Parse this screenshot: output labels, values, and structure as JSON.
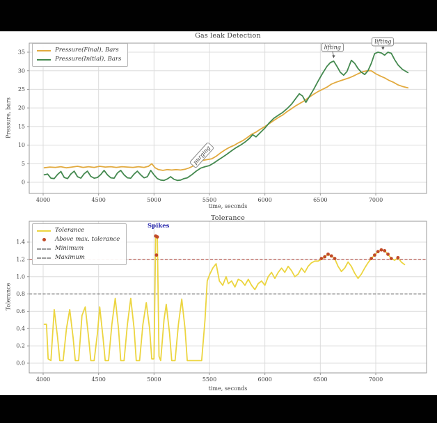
{
  "page": {
    "letterbox_color": "#010101",
    "canvas_color": "#ffffff",
    "grid_color": "#dcdcdc",
    "axis_color": "#999999",
    "tick_text_color": "#444444"
  },
  "chart_data": [
    {
      "type": "line",
      "title": "Gas leak Detection",
      "xlabel": "time, seconds",
      "ylabel": "Pressure, bars",
      "x_ticks": [
        4000,
        4500,
        5000,
        5500,
        6000,
        6500,
        7000
      ],
      "y_ticks": [
        0,
        5,
        10,
        15,
        20,
        25,
        30,
        35
      ],
      "xlim": [
        3875,
        7440
      ],
      "ylim": [
        -3,
        37.4
      ],
      "grid": true,
      "legend_position": "upper-left",
      "series": [
        {
          "name": "Pressure(Final), Bars",
          "color": "#e2aa3f",
          "x": [
            4010,
            4060,
            4110,
            4160,
            4210,
            4260,
            4310,
            4360,
            4410,
            4460,
            4510,
            4560,
            4610,
            4660,
            4710,
            4760,
            4810,
            4860,
            4910,
            4950,
            4980,
            5010,
            5040,
            5080,
            5120,
            5160,
            5200,
            5240,
            5280,
            5320,
            5360,
            5400,
            5440,
            5480,
            5520,
            5560,
            5600,
            5640,
            5680,
            5720,
            5760,
            5800,
            5840,
            5880,
            5920,
            5960,
            6000,
            6040,
            6080,
            6120,
            6160,
            6200,
            6240,
            6280,
            6320,
            6360,
            6400,
            6440,
            6480,
            6520,
            6560,
            6600,
            6640,
            6680,
            6720,
            6760,
            6800,
            6840,
            6880,
            6920,
            6960,
            7000,
            7040,
            7080,
            7120,
            7160,
            7200,
            7240,
            7290
          ],
          "y": [
            3.9,
            4.1,
            4.0,
            4.2,
            3.9,
            4.1,
            4.3,
            4.0,
            4.2,
            4.0,
            4.3,
            4.1,
            4.2,
            4.0,
            4.2,
            4.1,
            4.0,
            4.2,
            4.0,
            4.3,
            5.0,
            3.9,
            3.4,
            3.2,
            3.4,
            3.3,
            3.4,
            3.3,
            3.5,
            3.9,
            4.5,
            5.3,
            5.9,
            6.1,
            6.3,
            7.0,
            7.9,
            8.7,
            9.4,
            9.9,
            10.6,
            11.2,
            12.0,
            12.9,
            13.5,
            14.3,
            15.0,
            15.8,
            16.6,
            17.4,
            18.1,
            19.0,
            19.8,
            20.6,
            21.3,
            22.0,
            22.9,
            23.7,
            24.4,
            25.0,
            25.6,
            26.4,
            26.9,
            27.3,
            27.7,
            28.1,
            28.6,
            29.2,
            29.7,
            30.0,
            30.0,
            29.2,
            28.6,
            28.1,
            27.4,
            26.9,
            26.2,
            25.8,
            25.4
          ]
        },
        {
          "name": "Pressure(Initial), Bars",
          "color": "#44894f",
          "x": [
            4010,
            4040,
            4070,
            4100,
            4130,
            4160,
            4190,
            4220,
            4250,
            4280,
            4310,
            4340,
            4370,
            4400,
            4430,
            4460,
            4490,
            4520,
            4550,
            4580,
            4610,
            4640,
            4670,
            4700,
            4730,
            4760,
            4790,
            4820,
            4850,
            4880,
            4910,
            4940,
            4970,
            5000,
            5030,
            5060,
            5090,
            5120,
            5150,
            5180,
            5210,
            5240,
            5270,
            5300,
            5340,
            5380,
            5420,
            5460,
            5500,
            5540,
            5580,
            5620,
            5660,
            5700,
            5740,
            5780,
            5820,
            5860,
            5890,
            5920,
            5960,
            6000,
            6040,
            6080,
            6120,
            6160,
            6200,
            6240,
            6280,
            6310,
            6340,
            6370,
            6400,
            6440,
            6480,
            6520,
            6560,
            6590,
            6620,
            6650,
            6680,
            6710,
            6740,
            6780,
            6810,
            6840,
            6870,
            6900,
            6930,
            6960,
            6990,
            7020,
            7050,
            7080,
            7110,
            7140,
            7170,
            7200,
            7240,
            7290
          ],
          "y": [
            2.0,
            2.2,
            1.1,
            1.0,
            2.1,
            2.9,
            1.3,
            1.0,
            2.2,
            3.0,
            1.5,
            1.1,
            2.3,
            3.0,
            1.6,
            1.1,
            1.3,
            2.1,
            3.2,
            2.0,
            1.2,
            1.1,
            2.5,
            3.2,
            2.0,
            1.2,
            1.1,
            2.2,
            3.0,
            2.0,
            1.2,
            1.5,
            3.2,
            2.0,
            1.0,
            0.6,
            0.5,
            0.9,
            1.5,
            0.8,
            0.5,
            0.6,
            1.0,
            1.2,
            2.0,
            3.0,
            3.8,
            4.2,
            4.5,
            5.2,
            6.0,
            6.8,
            7.6,
            8.5,
            9.3,
            10.0,
            10.8,
            11.8,
            12.8,
            12.2,
            13.4,
            14.6,
            16.0,
            17.2,
            18.0,
            18.8,
            19.8,
            21.0,
            22.6,
            23.8,
            23.2,
            21.5,
            23.0,
            25.0,
            27.2,
            29.3,
            31.2,
            32.2,
            32.6,
            31.2,
            29.6,
            28.8,
            29.8,
            32.8,
            32.0,
            30.6,
            29.6,
            29.0,
            30.0,
            32.0,
            34.6,
            35.0,
            34.8,
            34.2,
            35.0,
            34.7,
            33.0,
            31.6,
            30.4,
            29.5
          ]
        }
      ],
      "annotations": [
        {
          "text": "purging",
          "style": "framed",
          "rotation": -48,
          "t": 5430,
          "v": 7.3
        },
        {
          "text": "lifting",
          "style": "framed",
          "rotation": 0,
          "t": 6610,
          "v": 36.3,
          "arrow": {
            "t": 6620,
            "v": 33.4
          }
        },
        {
          "text": "lifting",
          "style": "framed",
          "rotation": 0,
          "t": 7065,
          "v": 37.8,
          "arrow": {
            "t": 7065,
            "v": 35.6
          }
        }
      ]
    },
    {
      "type": "line",
      "title": "Tolerance",
      "xlabel": "time, seconds",
      "ylabel": "Tolerance",
      "x_ticks": [
        4000,
        4500,
        5000,
        5500,
        6000,
        6500,
        7000
      ],
      "y_ticks": [
        0.0,
        0.2,
        0.4,
        0.6,
        0.8,
        1.0,
        1.2,
        1.4
      ],
      "xlim": [
        3875,
        7440
      ],
      "ylim": [
        -0.11,
        1.64
      ],
      "grid": true,
      "legend_position": "upper-left",
      "series": [
        {
          "name": "Tolerance",
          "color": "#ecd540",
          "x": [
            4010,
            4030,
            4045,
            4070,
            4100,
            4130,
            4150,
            4180,
            4210,
            4240,
            4270,
            4290,
            4320,
            4350,
            4380,
            4410,
            4430,
            4460,
            4490,
            4510,
            4540,
            4560,
            4590,
            4620,
            4650,
            4680,
            4700,
            4730,
            4760,
            4790,
            4820,
            4840,
            4870,
            4900,
            4930,
            4960,
            4980,
            5000,
            5015,
            5030,
            5045,
            5060,
            5090,
            5110,
            5140,
            5160,
            5190,
            5220,
            5250,
            5280,
            5300,
            5330,
            5360,
            5400,
            5430,
            5460,
            5480,
            5500,
            5530,
            5560,
            5590,
            5620,
            5650,
            5670,
            5700,
            5730,
            5760,
            5790,
            5820,
            5850,
            5880,
            5910,
            5940,
            5970,
            6000,
            6030,
            6060,
            6090,
            6120,
            6150,
            6180,
            6210,
            6240,
            6270,
            6300,
            6330,
            6360,
            6390,
            6420,
            6450,
            6480,
            6510,
            6540,
            6570,
            6600,
            6630,
            6660,
            6690,
            6720,
            6750,
            6780,
            6810,
            6840,
            6870,
            6900,
            6930,
            6960,
            6990,
            7020,
            7050,
            7080,
            7110,
            7140,
            7170,
            7200,
            7230,
            7260
          ],
          "y": [
            0.45,
            0.45,
            0.05,
            0.03,
            0.62,
            0.3,
            0.03,
            0.03,
            0.4,
            0.62,
            0.3,
            0.03,
            0.03,
            0.55,
            0.65,
            0.3,
            0.03,
            0.03,
            0.35,
            0.65,
            0.3,
            0.03,
            0.03,
            0.45,
            0.75,
            0.4,
            0.03,
            0.03,
            0.45,
            0.75,
            0.4,
            0.03,
            0.03,
            0.45,
            0.7,
            0.4,
            0.05,
            0.05,
            1.47,
            1.47,
            0.08,
            0.03,
            0.5,
            0.68,
            0.35,
            0.03,
            0.03,
            0.45,
            0.74,
            0.4,
            0.03,
            0.03,
            0.03,
            0.03,
            0.03,
            0.5,
            0.95,
            1.02,
            1.1,
            1.15,
            0.95,
            0.9,
            1.0,
            0.92,
            0.95,
            0.88,
            0.97,
            0.95,
            0.9,
            0.97,
            0.9,
            0.85,
            0.92,
            0.95,
            0.9,
            1.0,
            1.05,
            0.98,
            1.05,
            1.1,
            1.05,
            1.12,
            1.07,
            1.0,
            1.03,
            1.1,
            1.05,
            1.12,
            1.16,
            1.18,
            1.18,
            1.2,
            1.23,
            1.26,
            1.24,
            1.21,
            1.12,
            1.06,
            1.1,
            1.17,
            1.12,
            1.04,
            0.98,
            1.03,
            1.1,
            1.16,
            1.21,
            1.25,
            1.29,
            1.31,
            1.3,
            1.26,
            1.21,
            1.19,
            1.22,
            1.17,
            1.14
          ]
        }
      ],
      "scatter": {
        "name": "Above max. tolerance",
        "color": "#c14a28",
        "x": [
          5015,
          5030,
          5022,
          6510,
          6540,
          6570,
          6600,
          6630,
          6960,
          6990,
          7020,
          7050,
          7080,
          7110,
          7140,
          7200
        ],
        "y": [
          1.47,
          1.46,
          1.25,
          1.21,
          1.23,
          1.26,
          1.24,
          1.21,
          1.21,
          1.25,
          1.29,
          1.31,
          1.3,
          1.26,
          1.21,
          1.22
        ]
      },
      "hlines": [
        {
          "name": "Minimum",
          "value": 0.8,
          "color": "#555555",
          "legend_color": "#9a9a9a"
        },
        {
          "name": "Maximum",
          "value": 1.2,
          "color": "#b04a42",
          "legend_color": "#9a9a9a"
        }
      ],
      "annotations": [
        {
          "text": "Spikes",
          "style": "bold-blue",
          "color": "#2222aa",
          "rotation": 0,
          "t": 5040,
          "v": 1.585
        }
      ]
    }
  ]
}
